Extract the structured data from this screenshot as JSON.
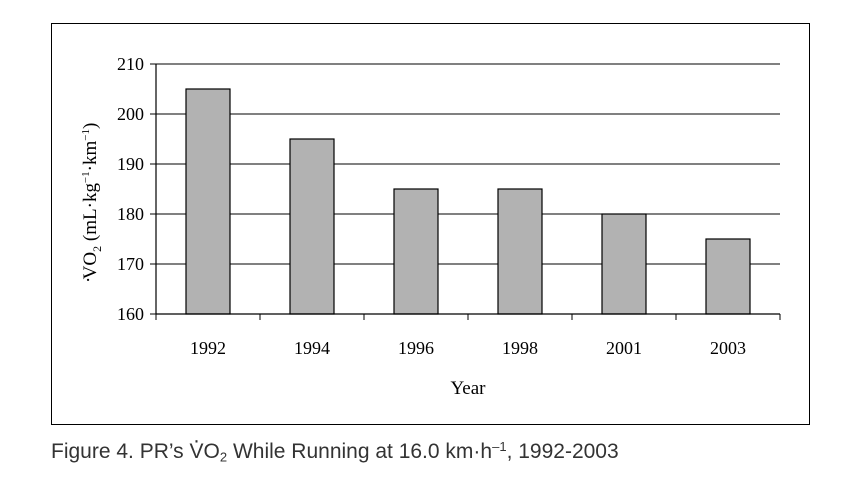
{
  "chart_data": {
    "type": "bar",
    "categories": [
      "1992",
      "1994",
      "1996",
      "1998",
      "2001",
      "2003"
    ],
    "values": [
      205,
      195,
      185,
      185,
      180,
      175
    ],
    "xlabel": "Year",
    "ylabel": {
      "v": "V",
      "o": "O",
      "sub2": "2",
      "units": " (mL·kg",
      "exp1": "−1",
      "mid": "·km",
      "exp2": "−1",
      "close": ")"
    },
    "ylim": [
      160,
      210
    ],
    "yticks": [
      "160",
      "170",
      "180",
      "190",
      "200",
      "210"
    ],
    "grid": true,
    "bar_color": "#b2b2b2",
    "bar_stroke": "#000000"
  },
  "caption": {
    "prefix": "Figure 4. PR’s ",
    "v": "V",
    "o": "O",
    "sub2": "2",
    "mid": " While Running at 16.0 km·h",
    "exp": "–1",
    "suffix": ", 1992-2003"
  }
}
